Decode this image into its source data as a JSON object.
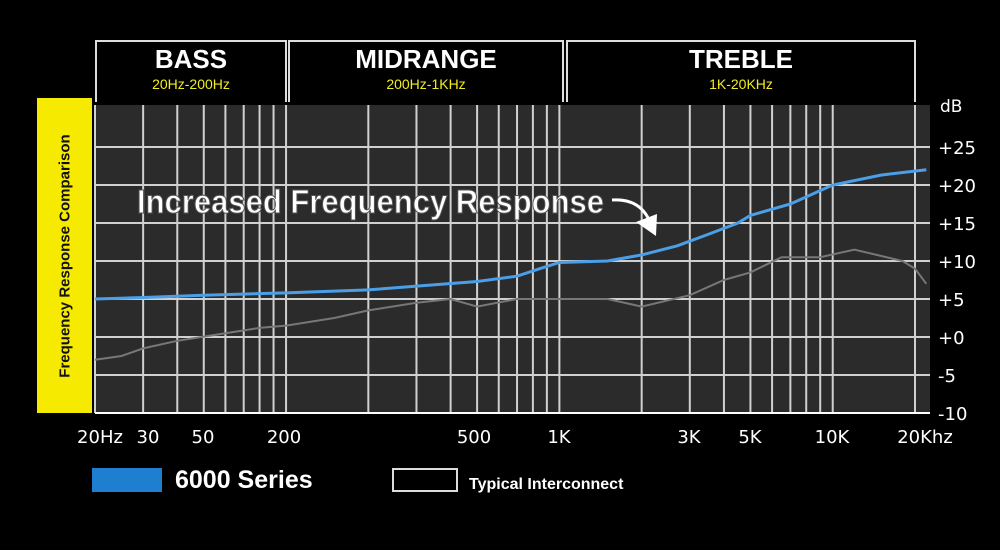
{
  "chart_data": {
    "type": "line",
    "title": "Increased Frequency Response",
    "ylabel": "Frequency Response Comparison",
    "yunit": "dB",
    "ylim": [
      -10,
      25
    ],
    "xlim": [
      20,
      20000
    ],
    "xscale": "log",
    "yticks": [
      "+25",
      "+20",
      "+15",
      "+10",
      "+5",
      "+0",
      "-5",
      "-10"
    ],
    "ytick_values": [
      25,
      20,
      15,
      10,
      5,
      0,
      -5,
      -10
    ],
    "xticks": [
      "20Hz",
      "30",
      "50",
      "200",
      "500",
      "1K",
      "3K",
      "5K",
      "10K",
      "20Khz"
    ],
    "bands": [
      {
        "name": "BASS",
        "range": "20Hz-200Hz"
      },
      {
        "name": "MIDRANGE",
        "range": "200Hz-1KHz"
      },
      {
        "name": "TREBLE",
        "range": "1K-20KHz"
      }
    ],
    "series": [
      {
        "name": "6000 Series",
        "color": "#4a9fe8",
        "x": [
          20,
          30,
          50,
          100,
          200,
          500,
          700,
          850,
          1000,
          1500,
          2000,
          2700,
          3500,
          4500,
          5000,
          7000,
          10000,
          15000,
          22000
        ],
        "y": [
          5,
          5.2,
          5.5,
          5.8,
          6.2,
          7.3,
          8,
          9,
          9.8,
          10,
          10.8,
          12,
          13.5,
          15,
          16,
          17.5,
          20,
          21.3,
          22
        ]
      },
      {
        "name": "Typical Interconnect",
        "color": "#777777",
        "x": [
          20,
          25,
          30,
          40,
          60,
          80,
          100,
          150,
          200,
          300,
          400,
          500,
          700,
          1500,
          2000,
          3000,
          4000,
          5000,
          6500,
          9000,
          12000,
          18000,
          20000,
          22000
        ],
        "y": [
          -3,
          -2.5,
          -1.5,
          -0.5,
          0.5,
          1.2,
          1.5,
          2.5,
          3.5,
          4.5,
          5,
          4,
          5,
          5,
          4,
          5.5,
          7.5,
          8.5,
          10.5,
          10.5,
          11.5,
          10,
          9,
          7
        ]
      }
    ]
  }
}
